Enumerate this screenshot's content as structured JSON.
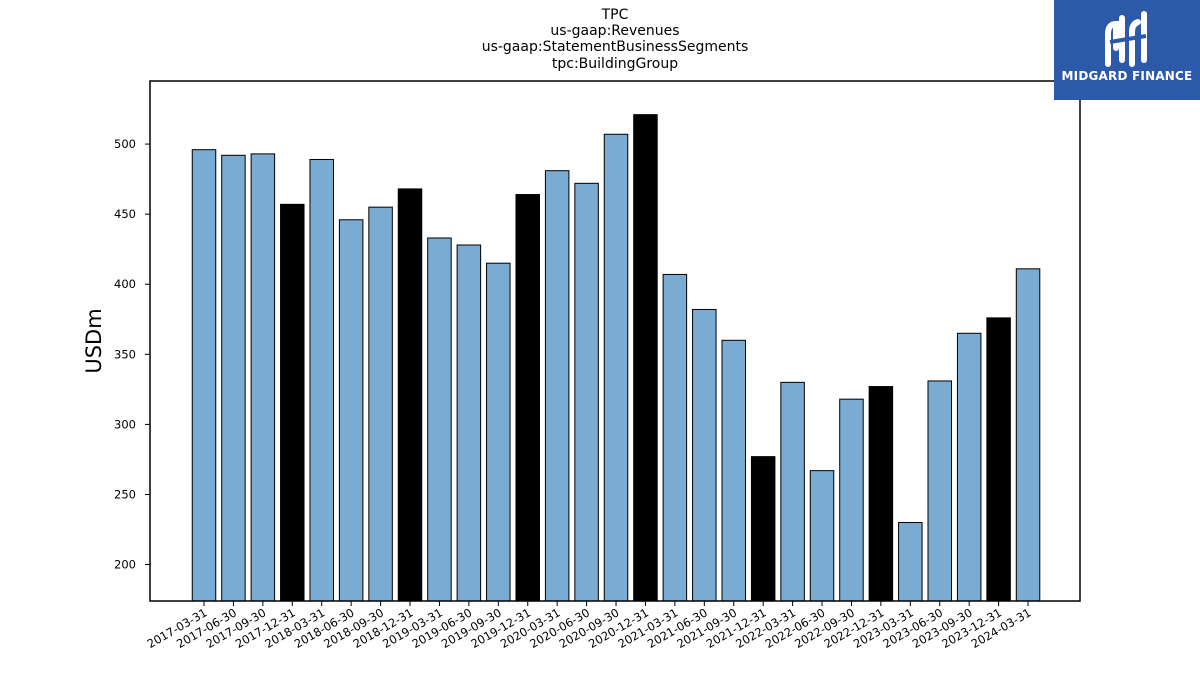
{
  "chart_data": {
    "type": "bar",
    "title_lines": [
      "TPC",
      "us-gaap:Revenues",
      "us-gaap:StatementBusinessSegments",
      "tpc:BuildingGroup"
    ],
    "xlabel": "",
    "ylabel": "USDm",
    "ylim": [
      174,
      545
    ],
    "yticks": [
      200,
      250,
      300,
      350,
      400,
      450,
      500
    ],
    "grid": false,
    "categories": [
      "2017-03-31",
      "2017-06-30",
      "2017-09-30",
      "2017-12-31",
      "2018-03-31",
      "2018-06-30",
      "2018-09-30",
      "2018-12-31",
      "2019-03-31",
      "2019-06-30",
      "2019-09-30",
      "2019-12-31",
      "2020-03-31",
      "2020-06-30",
      "2020-09-30",
      "2020-12-31",
      "2021-03-31",
      "2021-06-30",
      "2021-09-30",
      "2021-12-31",
      "2022-03-31",
      "2022-06-30",
      "2022-09-30",
      "2022-12-31",
      "2023-03-31",
      "2023-06-30",
      "2023-09-30",
      "2023-12-31",
      "2024-03-31"
    ],
    "values": [
      496,
      492,
      493,
      457,
      489,
      446,
      455,
      468,
      433,
      428,
      415,
      464,
      481,
      472,
      507,
      521,
      407,
      382,
      360,
      277,
      330,
      267,
      318,
      327,
      230,
      331,
      365,
      376,
      411
    ],
    "colors": {
      "quarter": "#7aabd2",
      "q4": "#000000",
      "edge": "#000000"
    }
  },
  "logo": {
    "text": "MIDGARD FINANCE",
    "bg": "#2d5aa8"
  }
}
